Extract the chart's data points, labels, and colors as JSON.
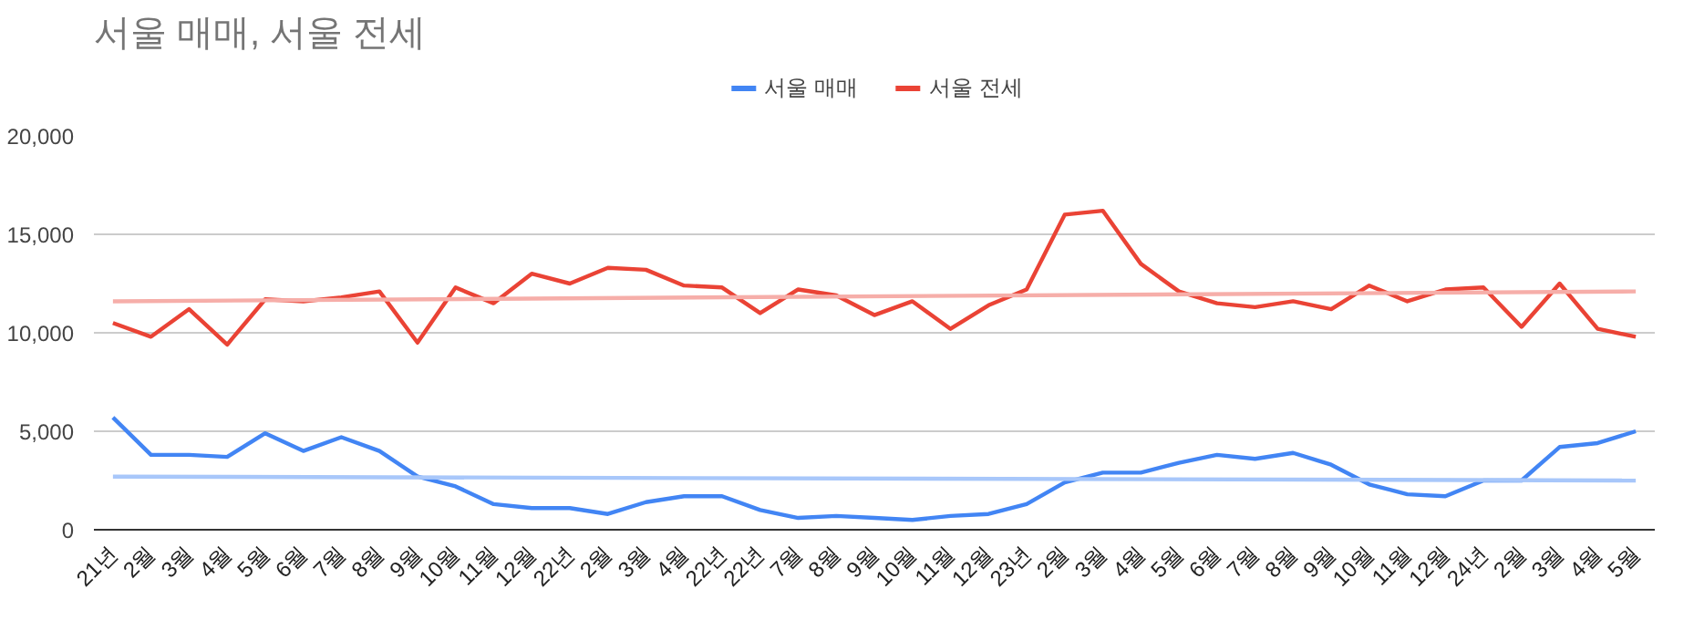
{
  "chart_data": {
    "type": "line",
    "title": "서울 매매, 서울 전세",
    "categories": [
      "21년",
      "2월",
      "3월",
      "4월",
      "5월",
      "6월",
      "7월",
      "8월",
      "9월",
      "10월",
      "11월",
      "12월",
      "22년",
      "2월",
      "3월",
      "4월",
      "22년",
      "22년",
      "7월",
      "8월",
      "9월",
      "10월",
      "11월",
      "12월",
      "23년",
      "2월",
      "3월",
      "4월",
      "5월",
      "6월",
      "7월",
      "8월",
      "9월",
      "10월",
      "11월",
      "12월",
      "24년",
      "2월",
      "3월",
      "4월",
      "5월"
    ],
    "series": [
      {
        "name": "서울 매매",
        "color": "#4285f4",
        "values": [
          5700,
          3800,
          3800,
          3700,
          4900,
          4000,
          4700,
          4000,
          2700,
          2200,
          1300,
          1100,
          1100,
          800,
          1400,
          1700,
          1700,
          1000,
          600,
          700,
          600,
          500,
          700,
          800,
          1300,
          2400,
          2900,
          2900,
          3400,
          3800,
          3600,
          3900,
          3300,
          2300,
          1800,
          1700,
          2500,
          2500,
          4200,
          4400,
          5000
        ]
      },
      {
        "name": "서울 전세",
        "color": "#ea4335",
        "values": [
          10500,
          9800,
          11200,
          9400,
          11700,
          11600,
          11800,
          12100,
          9500,
          12300,
          11500,
          13000,
          12500,
          13300,
          13200,
          12400,
          12300,
          11000,
          12200,
          11900,
          10900,
          11600,
          10200,
          11400,
          12200,
          16000,
          16200,
          13500,
          12100,
          11500,
          11300,
          11600,
          11200,
          12400,
          11600,
          12200,
          12300,
          10300,
          12500,
          10200,
          9800
        ]
      },
      {
        "color": "#a8c7fa",
        "values": [
          2700,
          null,
          null,
          null,
          null,
          null,
          null,
          null,
          null,
          null,
          null,
          null,
          null,
          null,
          null,
          null,
          null,
          null,
          null,
          null,
          null,
          null,
          null,
          null,
          null,
          null,
          null,
          null,
          null,
          null,
          null,
          null,
          null,
          null,
          null,
          null,
          null,
          null,
          null,
          null,
          2500
        ]
      },
      {
        "color": "#f6aea9",
        "values": [
          11600,
          null,
          null,
          null,
          null,
          null,
          null,
          null,
          null,
          null,
          null,
          null,
          null,
          null,
          null,
          null,
          null,
          null,
          null,
          null,
          null,
          null,
          null,
          null,
          null,
          null,
          null,
          null,
          null,
          null,
          null,
          null,
          null,
          null,
          null,
          null,
          null,
          null,
          null,
          null,
          12100
        ]
      }
    ],
    "ylim": [
      0,
      20000
    ],
    "yticks": [
      {
        "value": 0,
        "label": "0"
      },
      {
        "value": 5000,
        "label": "5,000"
      },
      {
        "value": 10000,
        "label": "10,000"
      },
      {
        "value": 15000,
        "label": "15,000"
      },
      {
        "value": 20000,
        "label": "20,000"
      }
    ],
    "grid": "y",
    "legend": "top"
  }
}
